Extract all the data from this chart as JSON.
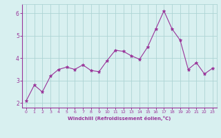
{
  "x": [
    0,
    1,
    2,
    3,
    4,
    5,
    6,
    7,
    8,
    9,
    10,
    11,
    12,
    13,
    14,
    15,
    16,
    17,
    18,
    19,
    20,
    21,
    22,
    23
  ],
  "y": [
    2.1,
    2.8,
    2.5,
    3.2,
    3.5,
    3.6,
    3.5,
    3.7,
    3.45,
    3.4,
    3.9,
    4.35,
    4.3,
    4.1,
    3.95,
    4.5,
    5.3,
    6.1,
    5.3,
    4.8,
    3.5,
    3.8,
    3.3,
    3.55
  ],
  "line_color": "#993399",
  "marker": "*",
  "marker_size": 3.5,
  "bg_color": "#d8f0f0",
  "grid_color": "#aed4d4",
  "xlabel": "Windchill (Refroidissement éolien,°C)",
  "ylim": [
    1.8,
    6.4
  ],
  "xlim": [
    -0.5,
    23.5
  ],
  "yticks": [
    2,
    3,
    4,
    5,
    6
  ],
  "xticks": [
    0,
    1,
    2,
    3,
    4,
    5,
    6,
    7,
    8,
    9,
    10,
    11,
    12,
    13,
    14,
    15,
    16,
    17,
    18,
    19,
    20,
    21,
    22,
    23
  ],
  "tick_color": "#993399",
  "label_color": "#993399",
  "spine_color": "#993399"
}
